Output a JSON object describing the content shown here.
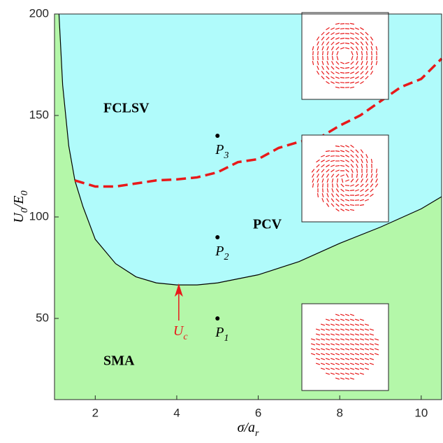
{
  "chart_data": {
    "type": "phase",
    "x_label": {
      "base": "σ/a",
      "sub": "r"
    },
    "y_label": {
      "base": "U",
      "sub": "0",
      "mid": "/E",
      "sub2": "0"
    },
    "xlim": [
      1,
      10.5
    ],
    "ylim": [
      10,
      200
    ],
    "xticks": [
      2,
      4,
      6,
      8,
      10
    ],
    "yticks": [
      50,
      100,
      150,
      200
    ],
    "fill_below": "#b4f7a9",
    "fill_above": "#b0fbfb",
    "boundary": {
      "color": "#000000",
      "x": [
        1.11,
        1.2,
        1.35,
        1.5,
        1.7,
        2,
        2.5,
        3,
        3.5,
        4,
        4.5,
        5,
        6,
        7,
        8,
        9,
        10,
        10.5
      ],
      "values": [
        200,
        165,
        135,
        118,
        105,
        89,
        77,
        70.5,
        67.5,
        66.5,
        66.5,
        67.5,
        71.5,
        78,
        87,
        95,
        104,
        110
      ]
    },
    "dashed": {
      "color": "#e8191a",
      "x": [
        1.5,
        2,
        2.5,
        3,
        3.5,
        4,
        4.5,
        5,
        5.5,
        6,
        6.5,
        7,
        7.5,
        8,
        8.5,
        9,
        9.5,
        10,
        10.5
      ],
      "values": [
        118,
        115,
        115,
        116.5,
        118,
        118.5,
        119.5,
        122,
        127,
        128.5,
        134,
        137,
        139,
        145,
        150,
        157,
        164,
        168,
        178
      ]
    },
    "points": [
      {
        "x": 5,
        "y": 140,
        "label": {
          "base": "P",
          "sub": "3"
        }
      },
      {
        "x": 5,
        "y": 90,
        "label": {
          "base": "P",
          "sub": "2"
        }
      },
      {
        "x": 5,
        "y": 50,
        "label": {
          "base": "P",
          "sub": "1"
        }
      }
    ],
    "regions": [
      "FCLSV",
      "PCV",
      "SMA"
    ],
    "critical_label": {
      "base": "U",
      "sub": "c"
    }
  }
}
